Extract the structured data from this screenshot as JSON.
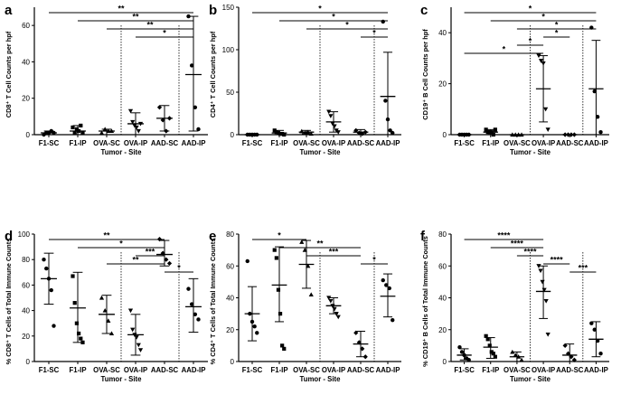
{
  "chart_data": [
    {
      "panel": "a",
      "type": "scatter",
      "ylabel": "CD8⁺ T Cell Counts per hpf",
      "xlabel": "Tumor - Site",
      "ylim": [
        0,
        70
      ],
      "yticks": [
        0,
        20,
        40,
        60
      ],
      "categories": [
        "F1-SC",
        "F1-IP",
        "OVA-SC",
        "OVA-IP",
        "AAD-SC",
        "AAD-IP"
      ],
      "separators_after": [
        2,
        4
      ],
      "series": [
        {
          "name": "F1-SC",
          "marker": "circle",
          "mean": 1,
          "lo": 0,
          "hi": 2,
          "values": [
            0,
            1,
            1,
            2,
            1
          ]
        },
        {
          "name": "F1-IP",
          "marker": "square",
          "mean": 2,
          "lo": 0,
          "hi": 5,
          "values": [
            4,
            1,
            3,
            2,
            5,
            1
          ]
        },
        {
          "name": "OVA-SC",
          "marker": "triangle-up",
          "mean": 2,
          "lo": 0,
          "hi": 3,
          "values": [
            1,
            3,
            2,
            2
          ]
        },
        {
          "name": "OVA-IP",
          "marker": "triangle-down",
          "mean": 6,
          "lo": 0,
          "hi": 12,
          "values": [
            13,
            7,
            5,
            4,
            2,
            6
          ]
        },
        {
          "name": "AAD-SC",
          "marker": "diamond",
          "mean": 9,
          "lo": 2,
          "hi": 16,
          "values": [
            15,
            8,
            2,
            9
          ]
        },
        {
          "name": "AAD-IP",
          "marker": "circle",
          "mean": 33,
          "lo": 2,
          "hi": 65,
          "values": [
            65,
            38,
            15,
            3
          ]
        }
      ],
      "significance": [
        {
          "from": 0,
          "to": 5,
          "label": "**"
        },
        {
          "from": 1,
          "to": 5,
          "label": "**"
        },
        {
          "from": 2,
          "to": 5,
          "label": "**"
        },
        {
          "from": 3,
          "to": 5,
          "label": "*"
        }
      ]
    },
    {
      "panel": "b",
      "type": "scatter",
      "ylabel": "CD4⁺ T Cell Counts per hpf",
      "xlabel": "Tumor - Site",
      "ylim": [
        0,
        150
      ],
      "yticks": [
        0,
        50,
        100,
        150
      ],
      "categories": [
        "F1-SC",
        "F1-IP",
        "OVA-SC",
        "OVA-IP",
        "AAD-SC",
        "AAD-IP"
      ],
      "separators_after": [
        2,
        4
      ],
      "series": [
        {
          "name": "F1-SC",
          "marker": "circle",
          "mean": 0,
          "lo": 0,
          "hi": 0,
          "values": [
            0,
            0,
            0,
            0,
            0
          ]
        },
        {
          "name": "F1-IP",
          "marker": "square",
          "mean": 2,
          "lo": 0,
          "hi": 5,
          "values": [
            5,
            3,
            2,
            1,
            1,
            0
          ]
        },
        {
          "name": "OVA-SC",
          "marker": "triangle-up",
          "mean": 3,
          "lo": 1,
          "hi": 5,
          "values": [
            4,
            2,
            3,
            1
          ]
        },
        {
          "name": "OVA-IP",
          "marker": "triangle-down",
          "mean": 15,
          "lo": 3,
          "hi": 27,
          "values": [
            27,
            22,
            13,
            10,
            5,
            3
          ]
        },
        {
          "name": "AAD-SC",
          "marker": "diamond",
          "mean": 3,
          "lo": 0,
          "hi": 6,
          "values": [
            5,
            2,
            1,
            3
          ]
        },
        {
          "name": "AAD-IP",
          "marker": "circle",
          "mean": 45,
          "lo": -7,
          "hi": 97,
          "values": [
            133,
            40,
            18,
            5,
            2
          ]
        }
      ],
      "significance": [
        {
          "from": 0,
          "to": 5,
          "label": "*"
        },
        {
          "from": 1,
          "to": 5,
          "label": "*"
        },
        {
          "from": 2,
          "to": 5,
          "label": "*"
        },
        {
          "from": 4,
          "to": 5,
          "label": "*"
        }
      ]
    },
    {
      "panel": "c",
      "type": "scatter",
      "ylabel": "CD19⁺ B Cell Counts per hpf",
      "xlabel": "Tumor - Site",
      "ylim": [
        0,
        50
      ],
      "yticks": [
        0,
        20,
        40
      ],
      "categories": [
        "F1-SC",
        "F1-IP",
        "OVA-SC",
        "OVA-IP",
        "AAD-SC",
        "AAD-IP"
      ],
      "separators_after": [
        2,
        4
      ],
      "series": [
        {
          "name": "F1-SC",
          "marker": "circle",
          "mean": 0,
          "lo": 0,
          "hi": 0,
          "values": [
            0,
            0,
            0,
            0,
            0
          ]
        },
        {
          "name": "F1-IP",
          "marker": "square",
          "mean": 1,
          "lo": 0,
          "hi": 2,
          "values": [
            2,
            1,
            1,
            1,
            0,
            2
          ]
        },
        {
          "name": "OVA-SC",
          "marker": "triangle-up",
          "mean": 0,
          "lo": 0,
          "hi": 0,
          "values": [
            0,
            0,
            0,
            0
          ]
        },
        {
          "name": "OVA-IP",
          "marker": "triangle-down",
          "mean": 18,
          "lo": 5,
          "hi": 31,
          "values": [
            31,
            29,
            28,
            10,
            2
          ]
        },
        {
          "name": "AAD-SC",
          "marker": "diamond",
          "mean": 0,
          "lo": 0,
          "hi": 0,
          "values": [
            0,
            0,
            0,
            0
          ]
        },
        {
          "name": "AAD-IP",
          "marker": "circle",
          "mean": 18,
          "lo": -2,
          "hi": 37,
          "values": [
            42,
            17,
            7,
            1
          ]
        }
      ],
      "significance": [
        {
          "from": 0,
          "to": 5,
          "label": "*"
        },
        {
          "from": 1,
          "to": 5,
          "label": "*"
        },
        {
          "from": 2,
          "to": 5,
          "label": "*"
        },
        {
          "from": 3,
          "to": 4,
          "label": "*"
        },
        {
          "from": 2,
          "to": 3,
          "label": "*"
        },
        {
          "from": 0,
          "to": 3,
          "label": "*"
        }
      ]
    },
    {
      "panel": "d",
      "type": "scatter",
      "ylabel": "% CD8⁺ T Cells of Total Immune Counts",
      "xlabel": "Tumor - Site",
      "ylim": [
        0,
        100
      ],
      "yticks": [
        0,
        20,
        40,
        60,
        80,
        100
      ],
      "categories": [
        "F1-SC",
        "F1-IP",
        "OVA-SC",
        "OVA-IP",
        "AAD-SC",
        "AAD-IP"
      ],
      "separators_after": [
        2,
        4
      ],
      "series": [
        {
          "name": "F1-SC",
          "marker": "circle",
          "mean": 65,
          "lo": 45,
          "hi": 85,
          "values": [
            80,
            73,
            65,
            56,
            28
          ]
        },
        {
          "name": "F1-IP",
          "marker": "square",
          "mean": 42,
          "lo": 15,
          "hi": 70,
          "values": [
            67,
            46,
            30,
            22,
            18,
            15
          ]
        },
        {
          "name": "OVA-SC",
          "marker": "triangle-up",
          "mean": 37,
          "lo": 22,
          "hi": 52,
          "values": [
            50,
            40,
            32,
            22
          ]
        },
        {
          "name": "OVA-IP",
          "marker": "triangle-down",
          "mean": 21,
          "lo": 5,
          "hi": 37,
          "values": [
            40,
            25,
            21,
            19,
            13,
            9
          ]
        },
        {
          "name": "AAD-SC",
          "marker": "diamond",
          "mean": 84,
          "lo": 75,
          "hi": 95,
          "values": [
            96,
            85,
            80,
            77
          ]
        },
        {
          "name": "AAD-IP",
          "marker": "circle",
          "mean": 43,
          "lo": 23,
          "hi": 65,
          "values": [
            57,
            45,
            37,
            33
          ]
        }
      ],
      "significance": [
        {
          "from": 0,
          "to": 4,
          "label": "**"
        },
        {
          "from": 1,
          "to": 4,
          "label": "*"
        },
        {
          "from": 3,
          "to": 4,
          "label": "***"
        },
        {
          "from": 2,
          "to": 4,
          "label": "**"
        },
        {
          "from": 4,
          "to": 5,
          "label": "*"
        }
      ]
    },
    {
      "panel": "e",
      "type": "scatter",
      "ylabel": "% CD4⁺ T Cells of Total Immune Counts",
      "xlabel": "Tumor - Site",
      "ylim": [
        0,
        80
      ],
      "yticks": [
        0,
        20,
        40,
        60,
        80
      ],
      "categories": [
        "F1-SC",
        "F1-IP",
        "OVA-SC",
        "OVA-IP",
        "AAD-SC",
        "AAD-IP"
      ],
      "separators_after": [
        2,
        4
      ],
      "series": [
        {
          "name": "F1-SC",
          "marker": "circle",
          "mean": 30,
          "lo": 13,
          "hi": 47,
          "values": [
            63,
            30,
            25,
            22,
            18
          ]
        },
        {
          "name": "F1-IP",
          "marker": "square",
          "mean": 48,
          "lo": 25,
          "hi": 72,
          "values": [
            70,
            65,
            45,
            30,
            10,
            8
          ]
        },
        {
          "name": "OVA-SC",
          "marker": "triangle-up",
          "mean": 61,
          "lo": 46,
          "hi": 76,
          "values": [
            75,
            70,
            60,
            42
          ]
        },
        {
          "name": "OVA-IP",
          "marker": "triangle-down",
          "mean": 35,
          "lo": 30,
          "hi": 40,
          "values": [
            40,
            38,
            35,
            33,
            30,
            28
          ]
        },
        {
          "name": "AAD-SC",
          "marker": "diamond",
          "mean": 11,
          "lo": 3,
          "hi": 19,
          "values": [
            18,
            12,
            8,
            3
          ]
        },
        {
          "name": "AAD-IP",
          "marker": "circle",
          "mean": 41,
          "lo": 28,
          "hi": 55,
          "values": [
            51,
            48,
            46,
            26
          ]
        }
      ],
      "significance": [
        {
          "from": 0,
          "to": 2,
          "label": "*"
        },
        {
          "from": 1,
          "to": 4,
          "label": "**"
        },
        {
          "from": 2,
          "to": 4,
          "label": "***"
        },
        {
          "from": 4,
          "to": 5,
          "label": "*"
        }
      ]
    },
    {
      "panel": "f",
      "type": "scatter",
      "ylabel": "% CD19⁺ B Cells of Total Immune Counts",
      "xlabel": "Tumor - Site",
      "ylim": [
        0,
        80
      ],
      "yticks": [
        0,
        20,
        40,
        60,
        80
      ],
      "categories": [
        "F1-SC",
        "F1-IP",
        "OVA-SC",
        "OVA-IP",
        "AAD-SC",
        "AAD-IP"
      ],
      "separators_after": [
        2,
        4
      ],
      "series": [
        {
          "name": "F1-SC",
          "marker": "circle",
          "mean": 4,
          "lo": 1,
          "hi": 8,
          "values": [
            9,
            6,
            4,
            2,
            1
          ]
        },
        {
          "name": "F1-IP",
          "marker": "square",
          "mean": 9,
          "lo": 2,
          "hi": 15,
          "values": [
            16,
            14,
            10,
            6,
            5,
            3
          ]
        },
        {
          "name": "OVA-SC",
          "marker": "triangle-up",
          "mean": 3,
          "lo": 0,
          "hi": 6,
          "values": [
            6,
            4,
            3,
            1
          ]
        },
        {
          "name": "OVA-IP",
          "marker": "triangle-down",
          "mean": 44,
          "lo": 27,
          "hi": 60,
          "values": [
            60,
            57,
            50,
            45,
            38,
            17
          ]
        },
        {
          "name": "AAD-SC",
          "marker": "diamond",
          "mean": 4,
          "lo": 0,
          "hi": 11,
          "values": [
            10,
            5,
            3,
            1
          ]
        },
        {
          "name": "AAD-IP",
          "marker": "circle",
          "mean": 14,
          "lo": 3,
          "hi": 25,
          "values": [
            24,
            20,
            13,
            5
          ]
        }
      ],
      "significance": [
        {
          "from": 0,
          "to": 3,
          "label": "****"
        },
        {
          "from": 1,
          "to": 3,
          "label": "****"
        },
        {
          "from": 2,
          "to": 3,
          "label": "****"
        },
        {
          "from": 3,
          "to": 4,
          "label": "****"
        },
        {
          "from": 4,
          "to": 5,
          "label": "***"
        }
      ]
    }
  ]
}
